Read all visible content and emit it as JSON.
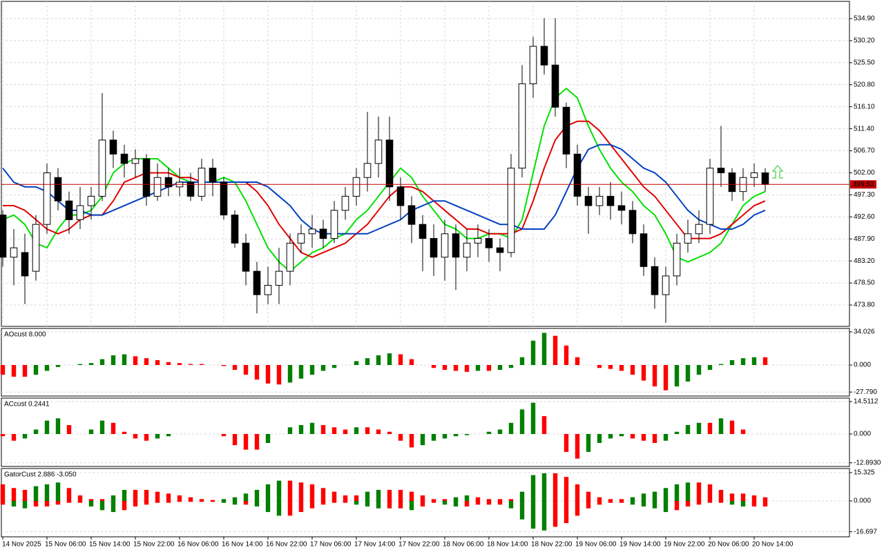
{
  "chart_data": [
    {
      "type": "candlestick",
      "x": [
        0,
        1,
        2,
        3,
        4,
        5,
        6,
        7,
        8,
        9,
        10,
        11,
        12,
        13,
        14,
        15,
        16,
        17,
        18,
        19,
        20,
        21,
        22,
        23,
        24,
        25,
        26,
        27,
        28,
        29,
        30,
        31,
        32,
        33,
        34,
        35,
        36,
        37,
        38,
        39,
        40,
        41,
        42,
        43,
        44,
        45,
        46,
        47,
        48,
        49,
        50,
        51,
        52,
        53,
        54,
        55,
        56,
        57,
        58,
        59,
        60,
        61,
        62,
        63,
        64,
        65,
        66,
        67,
        68,
        69
      ],
      "open": [
        493,
        484,
        485,
        481,
        491,
        501,
        496,
        492,
        495,
        497,
        509,
        506,
        504,
        505,
        497,
        501,
        499,
        500,
        497,
        503,
        500,
        493,
        487,
        481,
        476,
        478,
        481,
        487,
        489,
        490,
        488,
        494,
        497,
        501,
        504,
        509,
        499,
        495,
        491,
        488,
        484,
        489,
        484,
        487,
        488,
        486,
        485,
        503,
        521,
        529,
        525,
        516,
        506,
        497,
        495,
        497,
        495,
        494,
        489,
        482,
        476,
        480,
        487,
        489,
        491,
        503,
        502,
        498,
        501,
        502
      ],
      "high": [
        494,
        490,
        489,
        493,
        504,
        503,
        498,
        499,
        499,
        519,
        511,
        508,
        507,
        506,
        504,
        503,
        503,
        502,
        505,
        505,
        501,
        494,
        489,
        483,
        482,
        486,
        489,
        491,
        493,
        492,
        496,
        499,
        503,
        515,
        514,
        514,
        501,
        497,
        493,
        491,
        492,
        491,
        490,
        491,
        490,
        488,
        506,
        525,
        531,
        535,
        535,
        517,
        508,
        499,
        499,
        500,
        498,
        496,
        491,
        484,
        482,
        489,
        492,
        494,
        505,
        512,
        503,
        503,
        504,
        503
      ],
      "low": [
        482,
        478,
        474,
        479,
        489,
        494,
        489,
        490,
        492,
        496,
        503,
        501,
        501,
        495,
        496,
        497,
        497,
        496,
        496,
        497,
        492,
        486,
        478,
        472,
        474,
        474,
        478,
        485,
        486,
        486,
        487,
        492,
        495,
        498,
        501,
        496,
        492,
        487,
        481,
        480,
        479,
        477,
        481,
        484,
        483,
        481,
        484,
        501,
        518,
        523,
        514,
        503,
        495,
        489,
        493,
        492,
        491,
        487,
        480,
        473,
        470,
        478,
        485,
        487,
        489,
        499,
        496,
        496,
        499,
        498
      ],
      "close": [
        484,
        486,
        480,
        491,
        502,
        496,
        492,
        495,
        497,
        509,
        506,
        504,
        505,
        497,
        501,
        499,
        500,
        497,
        503,
        500,
        493,
        487,
        481,
        476,
        478,
        481,
        487,
        489,
        490,
        488,
        494,
        497,
        501,
        504,
        509,
        499,
        495,
        491,
        488,
        484,
        489,
        484,
        487,
        488,
        486,
        485,
        503,
        521,
        529,
        525,
        516,
        506,
        497,
        495,
        497,
        495,
        494,
        489,
        482,
        476,
        480,
        487,
        489,
        491,
        503,
        502,
        498,
        501,
        502,
        499.53
      ],
      "up_color": "#ffffff",
      "down_color": "#000000",
      "outline_color": "#000000",
      "series": [
        {
          "color": "#00e000",
          "values": [
            492,
            493,
            491,
            487,
            486,
            490,
            493,
            493,
            494,
            497,
            502,
            504,
            505,
            505,
            505,
            503,
            501,
            500,
            500,
            500,
            501,
            500,
            496,
            491,
            486,
            483,
            481,
            483,
            485,
            486,
            488,
            489,
            492,
            494,
            497,
            500,
            503,
            501,
            497,
            494,
            491,
            490,
            488,
            488,
            489,
            489,
            488,
            492,
            502,
            512,
            518,
            520,
            518,
            512,
            507,
            503,
            500,
            498,
            495,
            493,
            489,
            484,
            483,
            484,
            485,
            487,
            491,
            495,
            497,
            498
          ]
        },
        {
          "color": "#e00000",
          "values": [
            495,
            495,
            494,
            492,
            490,
            489,
            490,
            492,
            493,
            493,
            496,
            500,
            501,
            502,
            502,
            502,
            501,
            501,
            500,
            500,
            500,
            500,
            500,
            498,
            495,
            491,
            488,
            485,
            484,
            485,
            486,
            487,
            489,
            491,
            494,
            497,
            499,
            499,
            498,
            496,
            494,
            492,
            490,
            490,
            489,
            489,
            489,
            490,
            496,
            503,
            509,
            512,
            513,
            513,
            511,
            508,
            505,
            502,
            499,
            497,
            494,
            491,
            488,
            488,
            488,
            489,
            491,
            493,
            495,
            496
          ]
        },
        {
          "color": "#0040c0",
          "values": [
            503,
            500,
            499,
            499,
            498,
            496,
            494,
            494,
            493,
            493,
            494,
            495,
            496,
            497,
            498,
            499,
            500,
            500,
            500,
            500,
            500,
            500,
            500,
            500,
            499,
            497,
            495,
            492,
            490,
            489,
            489,
            489,
            489,
            489,
            490,
            491,
            492,
            494,
            495,
            496,
            496,
            495,
            494,
            493,
            492,
            491,
            491,
            490,
            490,
            490,
            493,
            498,
            503,
            507,
            508,
            508,
            507,
            505,
            503,
            502,
            500,
            497,
            494,
            492,
            491,
            490,
            490,
            491,
            493,
            494
          ]
        }
      ],
      "price_line": {
        "value": 499.53,
        "label": "499.53",
        "color": "#c00000"
      },
      "xlim": [
        -0.125,
        76.625
      ],
      "ylim": [
        469.24,
        538.58
      ],
      "yticks": [
        {
          "value": 534.9,
          "label": "534.90"
        },
        {
          "value": 530.2,
          "label": "530.20"
        },
        {
          "value": 525.5,
          "label": "525.50"
        },
        {
          "value": 520.8,
          "label": "520.80"
        },
        {
          "value": 516.1,
          "label": "516.10"
        },
        {
          "value": 511.4,
          "label": "511.40"
        },
        {
          "value": 506.7,
          "label": "506.70"
        },
        {
          "value": 502,
          "label": "502.00"
        },
        {
          "value": 497.3,
          "label": "497.30"
        },
        {
          "value": 492.6,
          "label": "492.60"
        },
        {
          "value": 487.9,
          "label": "487.90"
        },
        {
          "value": 483.2,
          "label": "483.20"
        },
        {
          "value": 478.5,
          "label": "478.50"
        },
        {
          "value": 473.8,
          "label": "473.80"
        }
      ],
      "xticks": [
        {
          "value": 0,
          "label": "14 Nov 2025"
        },
        {
          "value": 4,
          "label": "15 Nov 06:00"
        },
        {
          "value": 8,
          "label": "15 Nov 14:00"
        },
        {
          "value": 12,
          "label": "15 Nov 22:00"
        },
        {
          "value": 16,
          "label": "16 Nov 06:00"
        },
        {
          "value": 20,
          "label": "16 Nov 14:00"
        },
        {
          "value": 24,
          "label": "16 Nov 22:00"
        },
        {
          "value": 28,
          "label": "17 Nov 06:00"
        },
        {
          "value": 32,
          "label": "17 Nov 14:00"
        },
        {
          "value": 36,
          "label": "17 Nov 22:00"
        },
        {
          "value": 40,
          "label": "18 Nov 06:00"
        },
        {
          "value": 44,
          "label": "18 Nov 14:00"
        },
        {
          "value": 48,
          "label": "18 Nov 22:00"
        },
        {
          "value": 52,
          "label": "19 Nov 06:00"
        },
        {
          "value": 56,
          "label": "19 Nov 14:00"
        },
        {
          "value": 60,
          "label": "19 Nov 22:00"
        },
        {
          "value": 64,
          "label": "20 Nov 06:00"
        },
        {
          "value": 68,
          "label": "20 Nov 14:00"
        }
      ],
      "grid": true
    },
    {
      "type": "histogram",
      "title": "AOcust 8.000",
      "up_color": "#008000",
      "down_color": "#ff0000",
      "values": [
        -10,
        -12,
        -12,
        -10,
        -6,
        -2,
        0,
        1,
        2,
        6,
        10,
        11,
        9,
        7,
        5,
        3,
        2,
        1,
        1,
        0,
        -1,
        -5,
        -10,
        -15,
        -19,
        -20,
        -18,
        -14,
        -10,
        -6,
        -3,
        0,
        4,
        7,
        10,
        12,
        11,
        6,
        0,
        -3,
        -5,
        -6,
        -7,
        -6,
        -6,
        -5,
        -3,
        8,
        25,
        33,
        30,
        20,
        8,
        0,
        -3,
        -4,
        -6,
        -10,
        -16,
        -22,
        -26,
        -22,
        -17,
        -10,
        -5,
        1,
        5,
        7,
        8,
        8
      ],
      "ylim": [
        -31.9,
        37.57
      ],
      "yticks": [
        {
          "value": 34.026,
          "label": "34.026"
        },
        {
          "value": 0,
          "label": "0.000"
        },
        {
          "value": -27.79,
          "label": "-27.790"
        }
      ]
    },
    {
      "type": "histogram",
      "title": "ACcust 0.2441",
      "up_color": "#008000",
      "down_color": "#ff0000",
      "values": [
        -1,
        -3,
        -2,
        2,
        6,
        7,
        4,
        0,
        2,
        6,
        5,
        1,
        -2,
        -3,
        -2,
        -1,
        0,
        0,
        0,
        0,
        -1,
        -5,
        -7,
        -7,
        -4,
        0,
        3,
        4,
        5,
        4,
        3,
        2,
        3,
        3,
        2,
        1,
        -3,
        -6,
        -5,
        -3,
        -2,
        -1,
        -0.5,
        0,
        1,
        2,
        5,
        11,
        14,
        8,
        0,
        -8,
        -11,
        -8,
        -4,
        -2,
        -1,
        -2,
        -3,
        -4,
        -3,
        1,
        4,
        5,
        5,
        7,
        6,
        2,
        0,
        0
      ],
      "ylim": [
        -14.51,
        16.05
      ],
      "yticks": [
        {
          "value": 14.5112,
          "label": "14.5112"
        },
        {
          "value": 0,
          "label": "0.000"
        },
        {
          "value": -12.893,
          "label": "-12.8930"
        }
      ]
    },
    {
      "type": "gator",
      "title": "GatorCust 2.886 -3.050",
      "up_color": "#008000",
      "down_color": "#ff0000",
      "series": [
        {
          "values": [
            9,
            7,
            6,
            8,
            9,
            10,
            7,
            3,
            1,
            1,
            3,
            6,
            6,
            6,
            5,
            4,
            3,
            2,
            1,
            0.5,
            1,
            2,
            4,
            6,
            9,
            11,
            11,
            10,
            9,
            7,
            5,
            3,
            3,
            5,
            6,
            6,
            6,
            5,
            3,
            1,
            1,
            2,
            3,
            2,
            1,
            1,
            1,
            5,
            14,
            15,
            15,
            13,
            9,
            5,
            2,
            1,
            1,
            2,
            4,
            5,
            7,
            9,
            10,
            10,
            9,
            6,
            4,
            4,
            3,
            2
          ]
        },
        {
          "values": [
            -2,
            -3,
            -4,
            -3,
            -3,
            -2,
            -1,
            -1,
            -3,
            -5,
            -6,
            -5,
            -3,
            -2,
            -1,
            -1,
            -0.5,
            -0.5,
            -0.5,
            -0.5,
            -1,
            -2,
            -2,
            -3,
            -6,
            -8,
            -8,
            -6,
            -4,
            -2,
            -1,
            -1,
            -2,
            -3,
            -4,
            -4,
            -4,
            -5,
            -3,
            -1,
            -2,
            -3,
            -3,
            -2,
            -2,
            -2,
            -4,
            -10,
            -15,
            -16,
            -14,
            -12,
            -8,
            -4,
            -2,
            -1,
            -1,
            -2,
            -3,
            -4,
            -6,
            -5,
            -3,
            -2,
            -1,
            -1,
            -2,
            -3,
            -3,
            -3
          ]
        }
      ],
      "ylim": [
        -19.44,
        17.57
      ],
      "yticks": [
        {
          "value": 15.325,
          "label": "15.325"
        },
        {
          "value": 0,
          "label": "0.000"
        },
        {
          "value": -16.697,
          "label": "-16.697"
        }
      ]
    }
  ]
}
